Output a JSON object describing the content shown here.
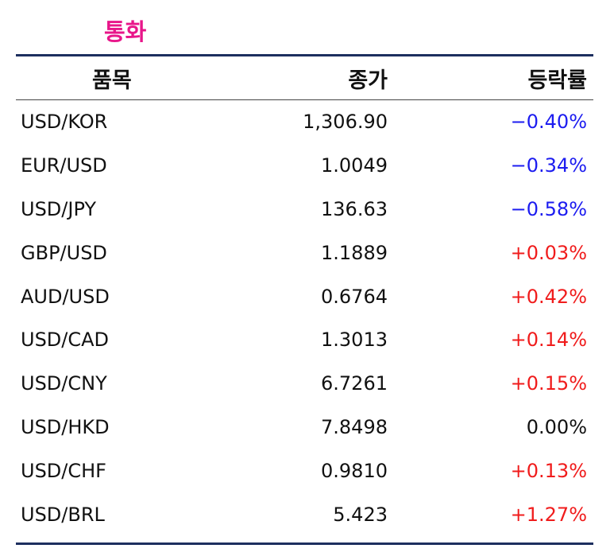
{
  "title": "통화",
  "colors": {
    "title": "#e8168a",
    "rule": "#1d2f5f",
    "down": "#1c1cf0",
    "up": "#f01c1c",
    "flat": "#111111"
  },
  "columns": {
    "item": "품목",
    "close": "종가",
    "change": "등락률"
  },
  "rows": [
    {
      "item": "USD/KOR",
      "close": "1,306.90",
      "change": "−0.40%",
      "direction": "down"
    },
    {
      "item": "EUR/USD",
      "close": "1.0049",
      "change": "−0.34%",
      "direction": "down"
    },
    {
      "item": "USD/JPY",
      "close": "136.63",
      "change": "−0.58%",
      "direction": "down"
    },
    {
      "item": "GBP/USD",
      "close": "1.1889",
      "change": "+0.03%",
      "direction": "up"
    },
    {
      "item": "AUD/USD",
      "close": "0.6764",
      "change": "+0.42%",
      "direction": "up"
    },
    {
      "item": "USD/CAD",
      "close": "1.3013",
      "change": "+0.14%",
      "direction": "up"
    },
    {
      "item": "USD/CNY",
      "close": "6.7261",
      "change": "+0.15%",
      "direction": "up"
    },
    {
      "item": "USD/HKD",
      "close": "7.8498",
      "change": "0.00%",
      "direction": "flat"
    },
    {
      "item": "USD/CHF",
      "close": "0.9810",
      "change": "+0.13%",
      "direction": "up"
    },
    {
      "item": "USD/BRL",
      "close": "5.423",
      "change": "+1.27%",
      "direction": "up"
    }
  ]
}
